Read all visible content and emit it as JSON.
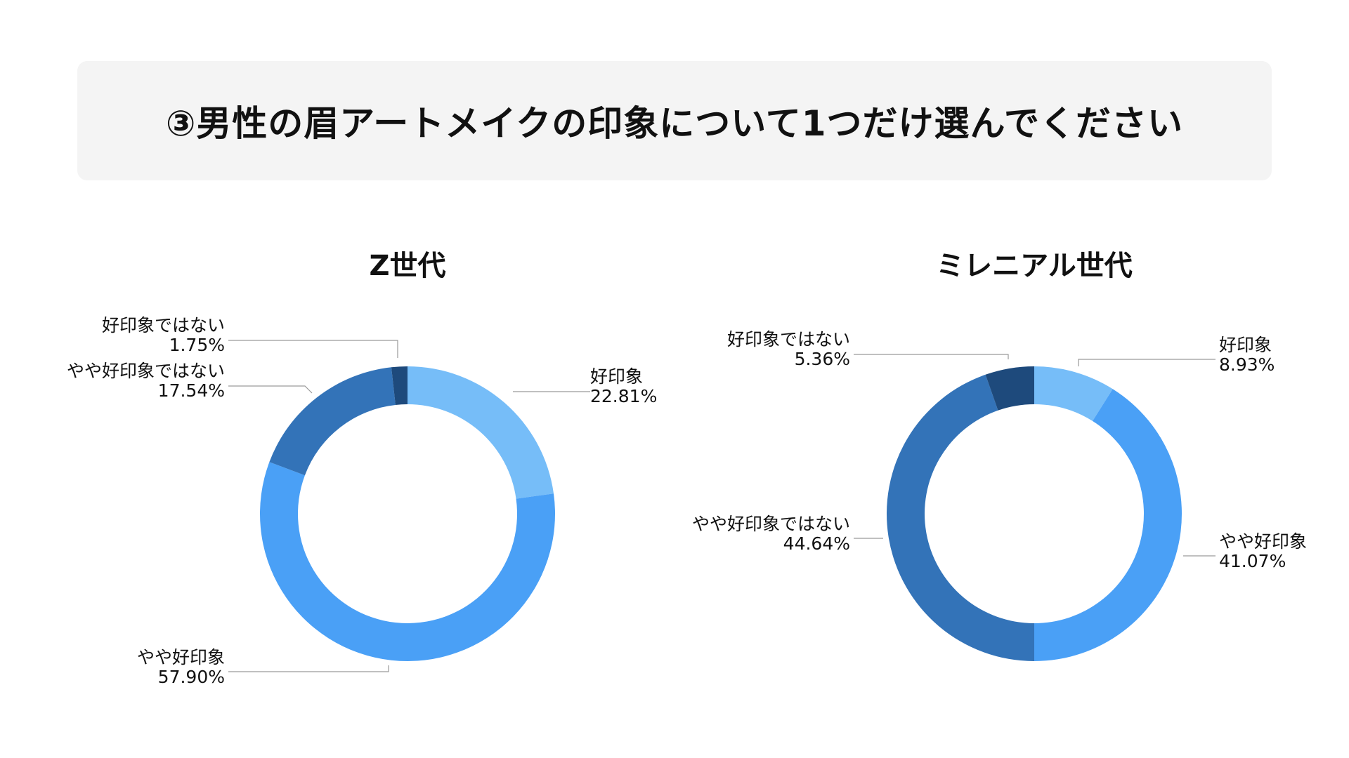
{
  "title": "③男性の眉アートメイクの印象について1つだけ選んでください",
  "chart_data": [
    {
      "type": "pie",
      "title": "Z世代",
      "categories": [
        "好印象",
        "やや好印象",
        "やや好印象ではない",
        "好印象ではない"
      ],
      "values": [
        22.81,
        57.9,
        17.54,
        1.75
      ],
      "value_labels": [
        "22.81%",
        "57.90%",
        "17.54%",
        "1.75%"
      ],
      "colors": [
        "#76bdf8",
        "#4aa0f6",
        "#3373b8",
        "#1e4a7c"
      ],
      "legend": "none"
    },
    {
      "type": "pie",
      "title": "ミレニアル世代",
      "categories": [
        "好印象",
        "やや好印象",
        "やや好印象ではない",
        "好印象ではない"
      ],
      "values": [
        8.93,
        41.07,
        44.64,
        5.36
      ],
      "value_labels": [
        "8.93%",
        "41.07%",
        "44.64%",
        "5.36%"
      ],
      "colors": [
        "#76bdf8",
        "#4aa0f6",
        "#3373b8",
        "#1e4a7c"
      ],
      "legend": "none"
    }
  ]
}
